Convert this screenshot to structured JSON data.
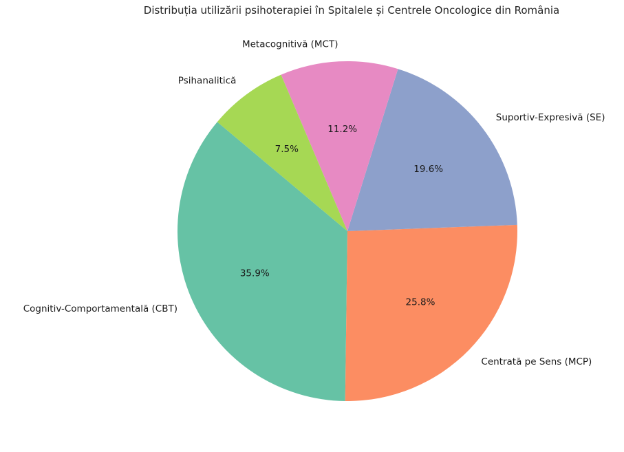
{
  "chart_data": {
    "type": "pie",
    "title": "Distribuția utilizării psihoterapiei în Spitalele și Centrele Oncologice din România",
    "background_color": "#ffffff",
    "start_angle_deg": 140,
    "direction": "counterclockwise",
    "label_distance": 1.1,
    "pct_distance": 0.6,
    "legend": "none",
    "slices": [
      {
        "id": "cbt",
        "label": "Cognitiv-Comportamentală (CBT)",
        "value": 35.9,
        "pct_label": "35.9%",
        "color": "#66c2a5"
      },
      {
        "id": "mcp",
        "label": "Centrată pe Sens (MCP)",
        "value": 25.8,
        "pct_label": "25.8%",
        "color": "#fc8d62"
      },
      {
        "id": "se",
        "label": "Suportiv-Expresivă (SE)",
        "value": 19.6,
        "pct_label": "19.6%",
        "color": "#8da0cb"
      },
      {
        "id": "mct",
        "label": "Metacognitivă (MCT)",
        "value": 11.2,
        "pct_label": "11.2%",
        "color": "#e78ac3"
      },
      {
        "id": "psihanalitica",
        "label": "Psihanalitică",
        "value": 7.5,
        "pct_label": "7.5%",
        "color": "#a6d854"
      }
    ]
  }
}
